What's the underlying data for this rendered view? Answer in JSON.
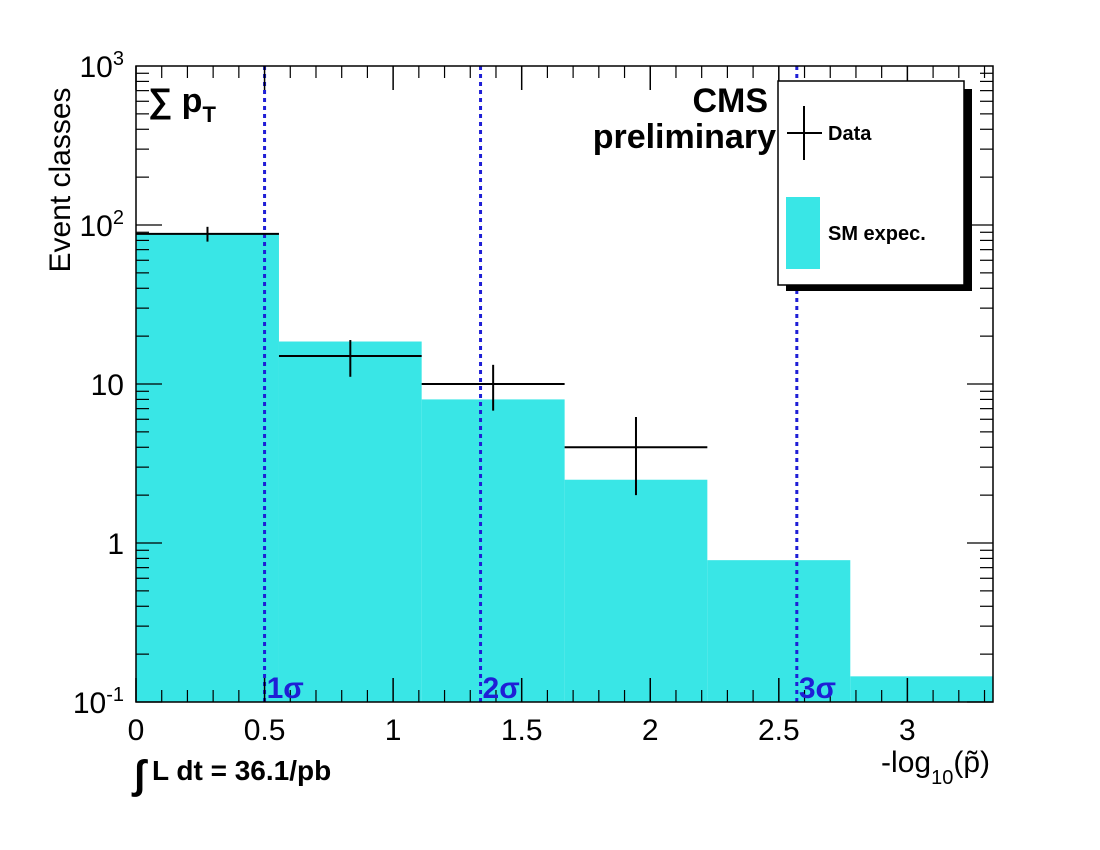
{
  "chart_data": {
    "type": "bar",
    "bins": [
      {
        "x_low": 0.0,
        "x_high": 0.556,
        "sm_expectation": 88,
        "data": 88,
        "data_err_low": 9.4,
        "data_err_high": 9.4
      },
      {
        "x_low": 0.556,
        "x_high": 1.111,
        "sm_expectation": 18.5,
        "data": 15,
        "data_err_low": 3.9,
        "data_err_high": 3.9
      },
      {
        "x_low": 1.111,
        "x_high": 1.667,
        "sm_expectation": 8,
        "data": 10,
        "data_err_low": 3.2,
        "data_err_high": 3.2
      },
      {
        "x_low": 1.667,
        "x_high": 2.222,
        "sm_expectation": 2.5,
        "data": 4,
        "data_err_low": 2.0,
        "data_err_high": 2.2
      },
      {
        "x_low": 2.222,
        "x_high": 2.778,
        "sm_expectation": 0.78,
        "data": null
      },
      {
        "x_low": 2.778,
        "x_high": 3.333,
        "sm_expectation": 0.145,
        "data": null
      }
    ],
    "sigma_lines": [
      {
        "x": 0.5,
        "label": "1σ"
      },
      {
        "x": 1.34,
        "label": "2σ"
      },
      {
        "x": 2.57,
        "label": "3σ"
      }
    ],
    "xlim": [
      0,
      3.333
    ],
    "ylim": [
      0.1,
      1000
    ],
    "yscale": "log",
    "x_ticks": [
      "0",
      "0.5",
      "1",
      "1.5",
      "2",
      "2.5",
      "3"
    ],
    "y_ticks": [
      {
        "base": "10",
        "exp": "-1"
      },
      {
        "base": "1",
        "exp": ""
      },
      {
        "base": "10",
        "exp": ""
      },
      {
        "base": "10",
        "exp": "2"
      },
      {
        "base": "10",
        "exp": "3"
      }
    ],
    "ylabel": "Event classes",
    "xlabel": {
      "prefix": "-log",
      "sub": "10",
      "suffix": "(p̃)"
    },
    "variable_label": {
      "sym": "∑ p",
      "sub": "T"
    },
    "experiment": {
      "line1": "CMS",
      "line2": "preliminary"
    },
    "luminosity": {
      "integral": "∫",
      "text": "L dt = 36.1/pb"
    },
    "legend": {
      "placement": "top-right",
      "entries": [
        {
          "label": "Data",
          "style": "marker"
        },
        {
          "label": "SM expec.",
          "style": "fill"
        }
      ]
    },
    "colors": {
      "sm_fill": "#39e6e6",
      "data": "#000000",
      "sigma_line": "#1f1fd6"
    }
  }
}
